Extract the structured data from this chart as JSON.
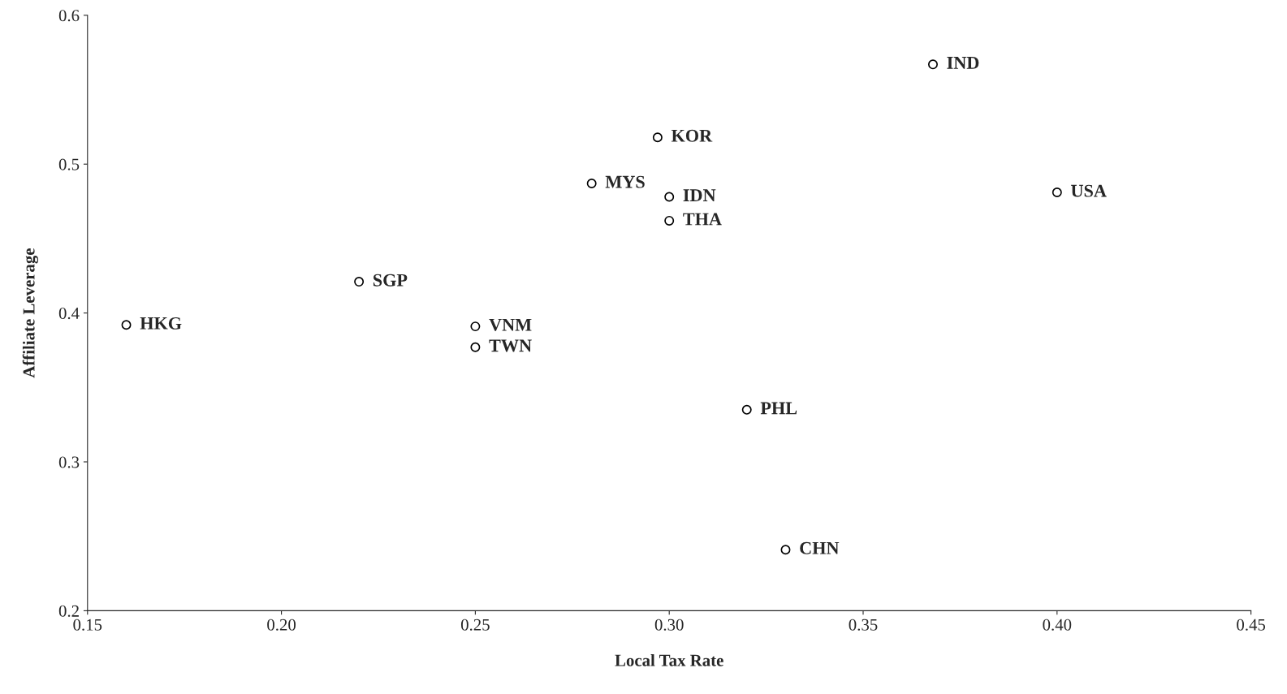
{
  "chart_data": {
    "type": "scatter",
    "xlabel": "Local Tax Rate",
    "ylabel": "Affiliate Leverage",
    "x": [
      0.16,
      0.22,
      0.25,
      0.25,
      0.28,
      0.297,
      0.3,
      0.3,
      0.32,
      0.33,
      0.368,
      0.4
    ],
    "values": [
      0.392,
      0.421,
      0.391,
      0.377,
      0.487,
      0.518,
      0.478,
      0.462,
      0.335,
      0.241,
      0.567,
      0.481
    ],
    "color": "#000000",
    "marker": "circle",
    "xlim": [
      0.15,
      0.45
    ],
    "xticks": [
      0.15,
      {
        "value": 0.2,
        "label": "0.20"
      },
      0.25,
      {
        "value": 0.3,
        "label": "0.30"
      },
      0.35,
      {
        "value": 0.4,
        "label": "0.40"
      },
      0.45
    ],
    "ylim": [
      0.2,
      0.6
    ],
    "yticks": [
      0.2,
      0.3,
      0.4,
      0.5,
      0.6
    ],
    "annotations": [
      {
        "text": "HKG",
        "x": 0.16,
        "y": 0.392
      },
      {
        "text": "SGP",
        "x": 0.22,
        "y": 0.421
      },
      {
        "text": "VNM",
        "x": 0.25,
        "y": 0.391
      },
      {
        "text": "TWN",
        "x": 0.25,
        "y": 0.377
      },
      {
        "text": "MYS",
        "x": 0.28,
        "y": 0.487
      },
      {
        "text": "KOR",
        "x": 0.297,
        "y": 0.518
      },
      {
        "text": "IDN",
        "x": 0.3,
        "y": 0.478
      },
      {
        "text": "THA",
        "x": 0.3,
        "y": 0.462
      },
      {
        "text": "PHL",
        "x": 0.32,
        "y": 0.335
      },
      {
        "text": "CHN",
        "x": 0.33,
        "y": 0.241
      },
      {
        "text": "IND",
        "x": 0.368,
        "y": 0.567
      },
      {
        "text": "USA",
        "x": 0.4,
        "y": 0.481
      }
    ],
    "grid": false,
    "legend": false
  }
}
